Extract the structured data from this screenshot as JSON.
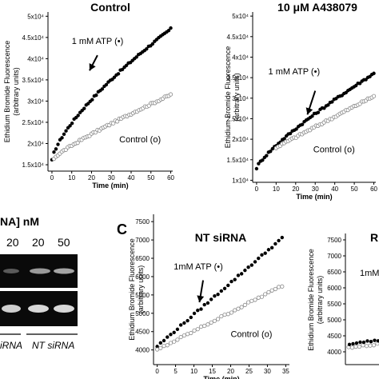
{
  "chart_data": [
    {
      "type": "scatter",
      "title": "Control",
      "xlabel": "Time (min)",
      "ylabel_lines": [
        "Ethidium Bromide Fluorescence",
        "(arbitrary units)"
      ],
      "xlim": [
        -2,
        61
      ],
      "ylim": [
        13500,
        51000
      ],
      "x_ticks": [
        0,
        10,
        20,
        30,
        40,
        50,
        60
      ],
      "y_ticks": [
        15000,
        20000,
        25000,
        30000,
        35000,
        40000,
        45000,
        50000
      ],
      "y_tick_labels": [
        "1.5x10⁴",
        "2x10⁴",
        "2.5x10⁴",
        "3x10⁴",
        "3.5x10⁴",
        "4x10⁴",
        "4.5x10⁴",
        "5x10⁴"
      ],
      "annotations": [
        {
          "text": "1 mM ATP (•)",
          "x": 10,
          "y": 43500
        },
        {
          "text": "Control (o)",
          "x": 34,
          "y": 20300
        }
      ],
      "arrow": {
        "from": [
          23,
          40800
        ],
        "to": [
          19,
          37200
        ]
      },
      "series": [
        {
          "marker": "filled",
          "x_start": 0,
          "x_end": 60,
          "n": 60,
          "y_start": 16000,
          "y_end": 47000,
          "curve": 0.7
        },
        {
          "marker": "open",
          "x_start": 1,
          "x_end": 60,
          "n": 60,
          "y_start": 16500,
          "y_end": 31500,
          "curve": 0.85
        }
      ]
    },
    {
      "type": "scatter",
      "title": "10 μM A438079",
      "xlabel": "Time (min)",
      "ylabel_lines": [
        "Ethidium Bromide Fluorescence",
        "(arbitrary units)"
      ],
      "xlim": [
        -2,
        61
      ],
      "ylim": [
        9500,
        51000
      ],
      "x_ticks": [
        0,
        10,
        20,
        30,
        40,
        50,
        60
      ],
      "y_ticks": [
        10000,
        15000,
        20000,
        25000,
        30000,
        35000,
        40000,
        45000,
        50000
      ],
      "y_tick_labels": [
        "1x10⁴",
        "1.5x10⁴",
        "2x10⁴",
        "2.5x10⁴",
        "3x10⁴",
        "3.5x10⁴",
        "4x10⁴",
        "4.5x10⁴",
        "5x10⁴"
      ],
      "annotations": [
        {
          "text": "1 mM ATP (•)",
          "x": 6,
          "y": 35800
        },
        {
          "text": "Control (o)",
          "x": 29,
          "y": 16800
        }
      ],
      "arrow": {
        "from": [
          30,
          31800
        ],
        "to": [
          26,
          26000
        ]
      },
      "series": [
        {
          "marker": "filled",
          "x_start": 0,
          "x_end": 60,
          "n": 60,
          "y_start": 13000,
          "y_end": 36000,
          "curve": 0.8
        },
        {
          "marker": "open",
          "x_start": 10,
          "x_end": 60,
          "n": 50,
          "y_start": 18000,
          "y_end": 30500,
          "curve": 1.0
        }
      ]
    },
    {
      "type": "scatter",
      "title": "NT siRNA",
      "xlabel": "Time (min)",
      "ylabel_lines": [
        "Ethidium Bromide Fluorescence",
        "(arbitrary units)"
      ],
      "xlim": [
        -1,
        36
      ],
      "ylim": [
        3600,
        7700
      ],
      "x_ticks": [
        0,
        5,
        10,
        15,
        20,
        25,
        30,
        35
      ],
      "y_ticks": [
        4000,
        4500,
        5000,
        5500,
        6000,
        6500,
        7000,
        7500
      ],
      "y_tick_labels": [
        "4000",
        "4500",
        "5000",
        "5500",
        "6000",
        "6500",
        "7000",
        "7500"
      ],
      "annotations": [
        {
          "text": "1mM ATP (•)",
          "x": 4.5,
          "y": 6200
        },
        {
          "text": "Control (o)",
          "x": 20,
          "y": 4350
        }
      ],
      "arrow": {
        "from": [
          12.5,
          5900
        ],
        "to": [
          11.5,
          5300
        ]
      },
      "series": [
        {
          "marker": "filled",
          "x_start": 0,
          "x_end": 34,
          "n": 38,
          "y_start": 4100,
          "y_end": 7050,
          "curve": 1.0
        },
        {
          "marker": "open",
          "x_start": 0,
          "x_end": 34,
          "n": 38,
          "y_start": 4000,
          "y_end": 5750,
          "curve": 1.0
        }
      ]
    }
  ],
  "partial_panel": {
    "ylabel_lines": [
      "Ethidium Bromide Fluorescence",
      "(arbitrary units)"
    ],
    "title_fragment": "R",
    "annotation_fragment": "1mM",
    "ylim": [
      3600,
      7700
    ],
    "y_ticks": [
      4000,
      4500,
      5000,
      5500,
      6000,
      6500,
      7000,
      7500
    ]
  },
  "panel_b": {
    "header": "NA] nM",
    "lane_labels": [
      "20",
      "20",
      "50"
    ],
    "bottom_labels": [
      "iRNA",
      "NT siRNA"
    ]
  },
  "panel_c": {
    "letter": "C"
  }
}
